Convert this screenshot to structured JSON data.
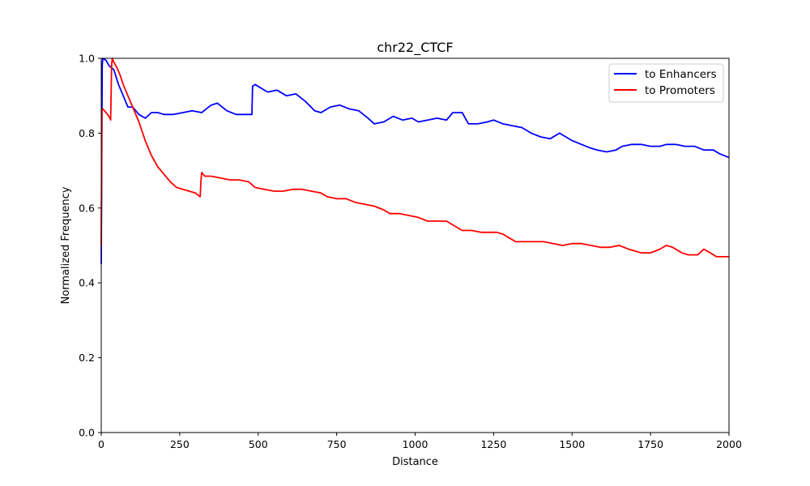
{
  "chart_data": {
    "type": "line",
    "title": "chr22_CTCF",
    "xlabel": "Distance",
    "ylabel": "Normalized Frequency",
    "xlim": [
      0,
      2000
    ],
    "ylim": [
      0.0,
      1.0
    ],
    "x_ticks": [
      "0",
      "250",
      "500",
      "750",
      "1000",
      "1250",
      "1500",
      "1750",
      "2000"
    ],
    "y_ticks": [
      "0.0",
      "0.2",
      "0.4",
      "0.6",
      "0.8",
      "1.0"
    ],
    "grid": false,
    "legend_position": "top-right",
    "series": [
      {
        "name": "to Enhancers",
        "color": "#0000ff",
        "x": [
          0,
          3,
          5,
          15,
          25,
          40,
          55,
          70,
          85,
          100,
          120,
          140,
          160,
          180,
          200,
          230,
          260,
          290,
          320,
          350,
          370,
          400,
          430,
          460,
          480,
          482,
          490,
          510,
          530,
          560,
          590,
          620,
          650,
          680,
          700,
          730,
          760,
          790,
          820,
          850,
          870,
          900,
          930,
          960,
          990,
          1010,
          1040,
          1070,
          1100,
          1120,
          1150,
          1170,
          1200,
          1230,
          1250,
          1280,
          1310,
          1340,
          1370,
          1400,
          1430,
          1460,
          1480,
          1500,
          1530,
          1560,
          1580,
          1610,
          1640,
          1660,
          1690,
          1720,
          1750,
          1780,
          1800,
          1830,
          1860,
          1890,
          1920,
          1950,
          1970,
          2000
        ],
        "y": [
          0.45,
          0.98,
          1.0,
          0.995,
          0.98,
          0.97,
          0.93,
          0.9,
          0.87,
          0.87,
          0.85,
          0.84,
          0.855,
          0.855,
          0.85,
          0.85,
          0.855,
          0.86,
          0.855,
          0.875,
          0.88,
          0.86,
          0.85,
          0.85,
          0.85,
          0.925,
          0.93,
          0.92,
          0.91,
          0.915,
          0.9,
          0.905,
          0.885,
          0.86,
          0.855,
          0.87,
          0.875,
          0.865,
          0.86,
          0.84,
          0.825,
          0.83,
          0.845,
          0.835,
          0.84,
          0.83,
          0.835,
          0.84,
          0.835,
          0.855,
          0.855,
          0.825,
          0.825,
          0.83,
          0.835,
          0.825,
          0.82,
          0.815,
          0.8,
          0.79,
          0.785,
          0.8,
          0.79,
          0.78,
          0.77,
          0.76,
          0.755,
          0.75,
          0.755,
          0.765,
          0.77,
          0.77,
          0.765,
          0.765,
          0.77,
          0.77,
          0.765,
          0.765,
          0.755,
          0.755,
          0.745,
          0.735
        ]
      },
      {
        "name": "to Promoters",
        "color": "#ff0000",
        "x": [
          0,
          2,
          5,
          10,
          20,
          28,
          30,
          33,
          35,
          40,
          50,
          60,
          70,
          85,
          100,
          120,
          140,
          160,
          180,
          200,
          220,
          240,
          260,
          280,
          300,
          315,
          318,
          320,
          330,
          350,
          380,
          410,
          440,
          470,
          490,
          520,
          550,
          580,
          610,
          640,
          670,
          700,
          720,
          750,
          780,
          810,
          840,
          870,
          900,
          920,
          950,
          980,
          1010,
          1040,
          1070,
          1100,
          1120,
          1150,
          1180,
          1210,
          1240,
          1260,
          1280,
          1300,
          1320,
          1350,
          1380,
          1410,
          1440,
          1470,
          1500,
          1530,
          1560,
          1590,
          1620,
          1650,
          1680,
          1700,
          1720,
          1750,
          1780,
          1800,
          1820,
          1850,
          1870,
          1900,
          1920,
          1940,
          1960,
          1980,
          2000
        ],
        "y": [
          0.5,
          0.86,
          0.865,
          0.86,
          0.85,
          0.84,
          0.835,
          0.98,
          1.0,
          0.99,
          0.975,
          0.955,
          0.93,
          0.9,
          0.87,
          0.83,
          0.78,
          0.74,
          0.71,
          0.69,
          0.67,
          0.655,
          0.65,
          0.645,
          0.64,
          0.63,
          0.675,
          0.695,
          0.685,
          0.685,
          0.68,
          0.675,
          0.675,
          0.67,
          0.655,
          0.65,
          0.645,
          0.645,
          0.65,
          0.65,
          0.645,
          0.64,
          0.63,
          0.625,
          0.625,
          0.615,
          0.61,
          0.605,
          0.595,
          0.585,
          0.585,
          0.58,
          0.575,
          0.565,
          0.565,
          0.565,
          0.555,
          0.54,
          0.54,
          0.535,
          0.535,
          0.535,
          0.53,
          0.52,
          0.51,
          0.51,
          0.51,
          0.51,
          0.505,
          0.5,
          0.505,
          0.505,
          0.5,
          0.495,
          0.495,
          0.5,
          0.49,
          0.485,
          0.48,
          0.48,
          0.49,
          0.5,
          0.495,
          0.48,
          0.475,
          0.475,
          0.49,
          0.48,
          0.47,
          0.47,
          0.47
        ]
      }
    ]
  }
}
